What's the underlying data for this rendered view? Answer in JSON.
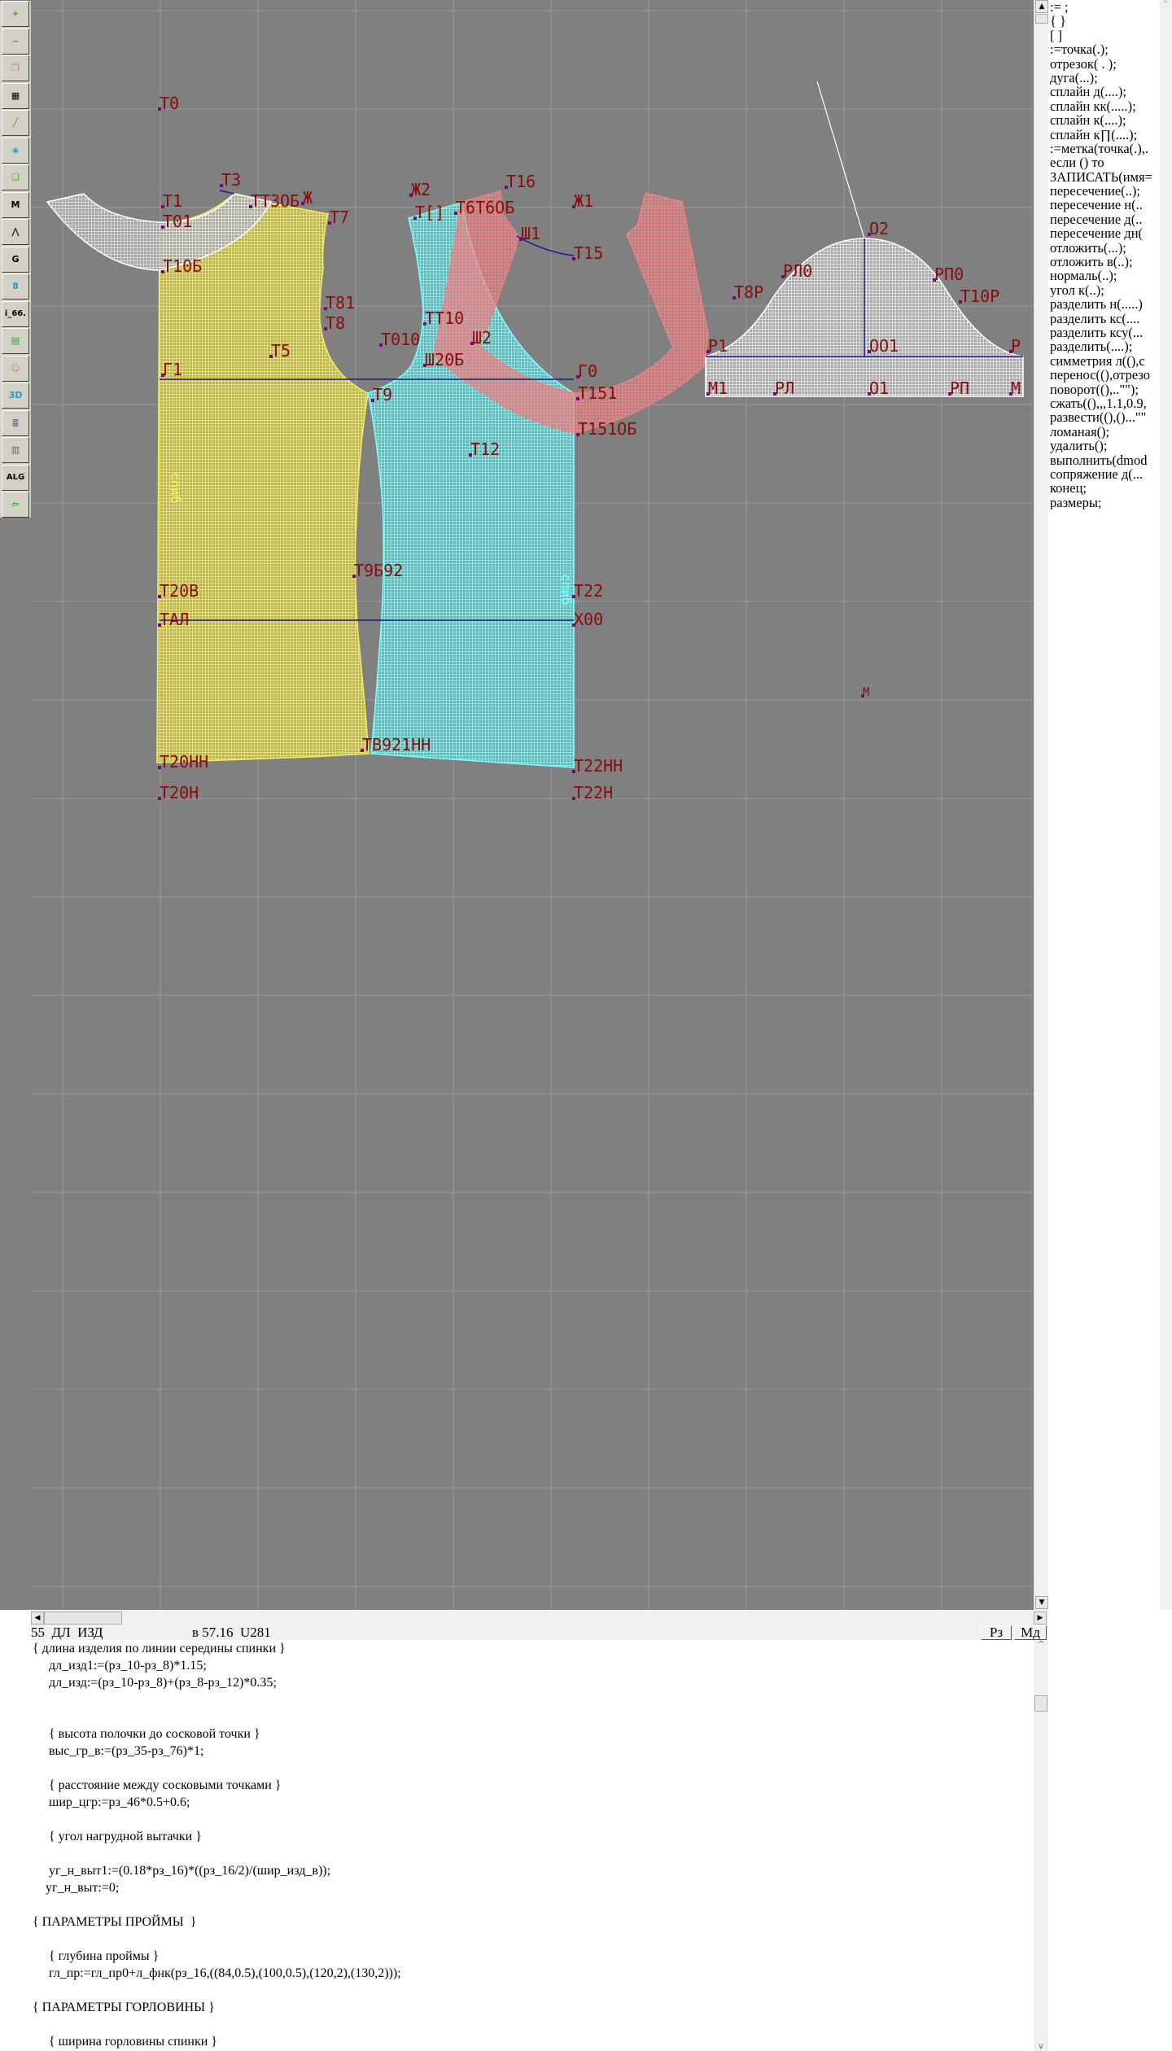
{
  "toolbar": {
    "tools": [
      {
        "name": "zoom-in-icon",
        "glyph": "+",
        "color": "#3a3"
      },
      {
        "name": "zoom-out-icon",
        "glyph": "−",
        "color": "#3a3"
      },
      {
        "name": "pattern-pieces-icon",
        "glyph": "❒",
        "color": "#a87"
      },
      {
        "name": "grid-icon",
        "glyph": "▦",
        "color": "#000"
      },
      {
        "name": "segment-icon",
        "glyph": "╱",
        "color": "#2a2"
      },
      {
        "name": "map-icon",
        "glyph": "◈",
        "color": "#29c"
      },
      {
        "name": "outline-piece-icon",
        "glyph": "❑",
        "color": "#3b3"
      },
      {
        "name": "model-icon",
        "glyph": "M",
        "color": "#000"
      },
      {
        "name": "compass-icon",
        "glyph": "⋀",
        "color": "#333"
      },
      {
        "name": "grading-icon",
        "glyph": "G",
        "color": "#000"
      },
      {
        "name": "ruler-icon",
        "glyph": "8",
        "color": "#29c"
      },
      {
        "name": "variable-icon",
        "glyph": "i_66.",
        "color": "#000"
      },
      {
        "name": "table-icon",
        "glyph": "▤",
        "color": "#2a2"
      },
      {
        "name": "avatar-icon",
        "glyph": "☺",
        "color": "#c85"
      },
      {
        "name": "3d-icon",
        "glyph": "3D",
        "color": "#29c"
      },
      {
        "name": "list-icon",
        "glyph": "≣",
        "color": "#557"
      },
      {
        "name": "books-icon",
        "glyph": "▥",
        "color": "#666"
      },
      {
        "name": "algorithm-icon",
        "glyph": "ALG",
        "color": "#000"
      },
      {
        "name": "exit-icon",
        "glyph": "⇦",
        "color": "#2a2"
      }
    ]
  },
  "canvas": {
    "colors": {
      "background": "#808080",
      "back_piece": "#e6dc6e",
      "front_piece": "#7fe0e0",
      "collar": "#f08080",
      "sleeve": "#d8d8d8",
      "label": "#8b0a0a",
      "construction_line": "#1a1a8c"
    },
    "labels": [
      "Т0",
      "Т1",
      "Т01",
      "Т10Б",
      "Т3",
      "ТТ3ОБ",
      "Ж",
      "Т7",
      "Т81",
      "Т8",
      "Т5",
      "Г1",
      "Т9",
      "Ж2",
      "Т[]",
      "Т6Т6ОБ",
      "Т16",
      "Ж1",
      "Ш1",
      "Т15",
      "ТТ10",
      "Т010",
      "Ш2",
      "Ш20Б",
      "Г0",
      "Т151",
      "Т151ОБ",
      "Т12",
      "Т9Б92",
      "Т20В",
      "Т22",
      "ТАЛ",
      "Х00",
      "М",
      "Т20НН",
      "ТВ921НН",
      "Т22НН",
      "Т20Н",
      "Т22Н",
      "О2",
      "РЛ0",
      "Т8Р",
      "РП0",
      "Т10Р",
      "Р1",
      "ОО1",
      "Р",
      "М1",
      "РЛ",
      "О1",
      "РП",
      "М"
    ],
    "grain_labels": [
      "спиб",
      "спиб"
    ]
  },
  "commands": [
    ":= ;",
    "{  }",
    "[  ]",
    ":=точка(.);",
    "отрезок( . );",
    "дуга(...);",
    "сплайн  д(....);",
    "сплайн  кк(.....);",
    "сплайн  к(....);",
    "сплайн  к∏(....);",
    ":=метка(точка(.),.",
    "если () то",
    "ЗАПИСАТЬ(имя=",
    "пересечение(..);",
    "пересечение  н(..",
    "пересечение  д(..",
    "пересечение  дн(",
    "отложить(...);",
    "отложить  в(..);",
    "нормаль(..);",
    "угол  к(..);",
    "разделить  н(.....)",
    "разделить  кс(....",
    "разделить  ксу(...",
    "разделить(....);",
    "симметрия  л((),с",
    "перенос((),отрезо",
    "поворот((),..\"\");",
    "сжать((),,,1.1,0.9,",
    "развести((),()...\"\"",
    "ломаная();",
    "удалить();",
    "выполнить(dmod",
    "сопряжение  д(...",
    "конец;",
    "размеры;"
  ],
  "status": {
    "left": "55  ДЛ  ИЗД",
    "right": "в 57.16  U281",
    "btn_rz": "Рз",
    "btn_md": "Мд"
  },
  "editor": {
    "lines": [
      "{ длина изделия по линии середины спинки }",
      "     дл_изд1:=(рз_10-рз_8)*1.15;",
      "     дл_изд:=(рз_10-рз_8)+(рз_8-рз_12)*0.35;",
      "",
      "",
      "     { высота полочки до сосковой точки }",
      "     выс_гр_в:=(рз_35-рз_76)*1;",
      "",
      "     { расстояние между сосковыми точками }",
      "     шир_цгр:=рз_46*0.5+0.6;",
      "",
      "     { угол нагрудной вытачки }",
      "",
      "     уг_н_выт1:=(0.18*рз_16)*((рз_16/2)/(шир_изд_в));",
      "    уг_н_выт:=0;",
      "",
      "{ ПАРАМЕТРЫ ПРОЙМЫ  }",
      "",
      "     { глубина проймы }",
      "     гл_пр:=гл_пр0+л_фнк(рз_16,((84,0.5),(100,0.5),(120,2),(130,2)));",
      "",
      "{ ПАРАМЕТРЫ ГОРЛОВИНЫ }",
      "",
      "     { ширина горловины спинки }"
    ]
  }
}
